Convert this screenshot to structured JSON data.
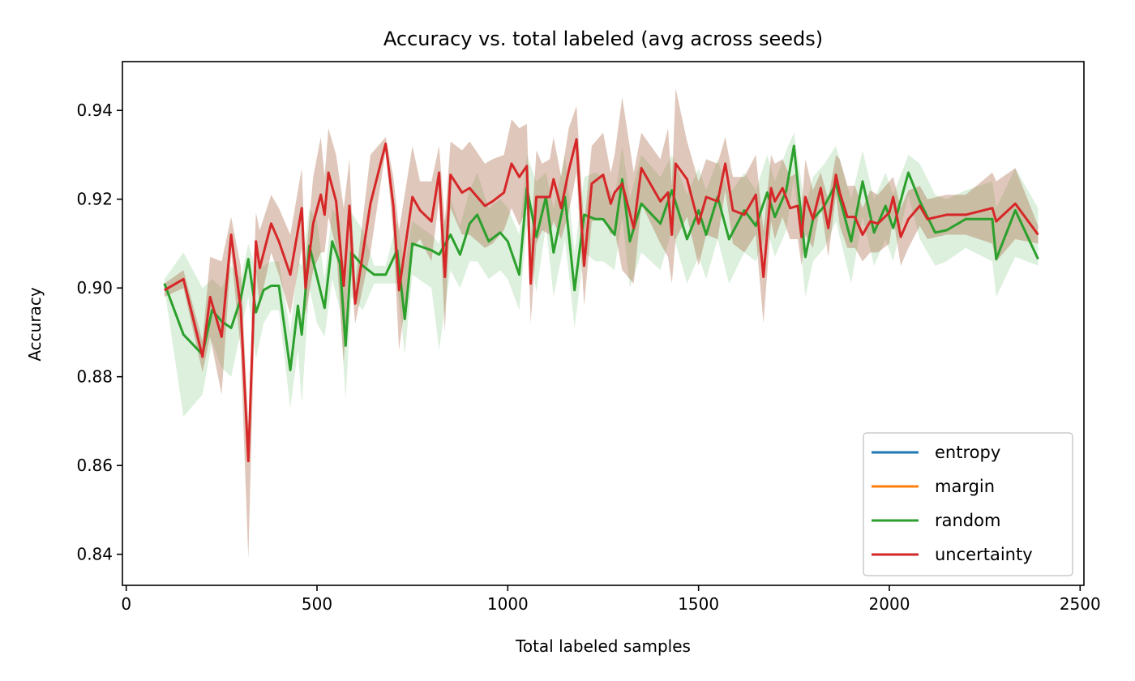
{
  "chart_data": {
    "type": "line",
    "title": "Accuracy vs. total labeled (avg across seeds)",
    "xlabel": "Total labeled samples",
    "ylabel": "Accuracy",
    "xlim": [
      -10,
      2510
    ],
    "ylim": [
      0.833,
      0.951
    ],
    "xticks": [
      0,
      500,
      1000,
      1500,
      2000,
      2500
    ],
    "yticks": [
      0.84,
      0.86,
      0.88,
      0.9,
      0.92,
      0.94
    ],
    "grid": false,
    "legend_position": "lower-right",
    "legend": [
      {
        "label": "entropy",
        "color": "#1f77b4"
      },
      {
        "label": "margin",
        "color": "#ff7f0e"
      },
      {
        "label": "random",
        "color": "#2ca02c"
      },
      {
        "label": "uncertainty",
        "color": "#d62728"
      }
    ],
    "series": [
      {
        "name": "random",
        "color": "#2ca02c",
        "band_color": "#2ca02c",
        "band_opacity": 0.16,
        "x": [
          100,
          150,
          200,
          225,
          250,
          275,
          300,
          320,
          340,
          360,
          380,
          400,
          430,
          450,
          460,
          480,
          500,
          520,
          540,
          560,
          575,
          590,
          620,
          650,
          680,
          710,
          730,
          750,
          800,
          820,
          850,
          875,
          900,
          920,
          950,
          980,
          1000,
          1030,
          1050,
          1075,
          1100,
          1120,
          1150,
          1175,
          1200,
          1230,
          1250,
          1280,
          1300,
          1320,
          1350,
          1400,
          1430,
          1470,
          1500,
          1520,
          1550,
          1580,
          1620,
          1650,
          1680,
          1700,
          1730,
          1750,
          1780,
          1800,
          1830,
          1860,
          1900,
          1930,
          1960,
          1990,
          2010,
          2050,
          2080,
          2120,
          2150,
          2200,
          2270,
          2280,
          2330,
          2390
        ],
        "y": [
          0.901,
          0.8895,
          0.885,
          0.895,
          0.8925,
          0.891,
          0.8975,
          0.9065,
          0.8945,
          0.8995,
          0.9005,
          0.9005,
          0.8815,
          0.896,
          0.8895,
          0.9095,
          0.9025,
          0.8955,
          0.9105,
          0.9055,
          0.887,
          0.908,
          0.905,
          0.903,
          0.903,
          0.9085,
          0.893,
          0.91,
          0.9085,
          0.9075,
          0.912,
          0.9075,
          0.9145,
          0.9165,
          0.9105,
          0.9125,
          0.9105,
          0.903,
          0.9225,
          0.9115,
          0.9205,
          0.908,
          0.9205,
          0.8995,
          0.9165,
          0.9155,
          0.9155,
          0.912,
          0.9245,
          0.9105,
          0.919,
          0.9145,
          0.922,
          0.911,
          0.9175,
          0.912,
          0.9205,
          0.911,
          0.9175,
          0.914,
          0.9215,
          0.916,
          0.922,
          0.932,
          0.907,
          0.9155,
          0.9185,
          0.9235,
          0.9105,
          0.924,
          0.9125,
          0.9185,
          0.9135,
          0.926,
          0.9195,
          0.9125,
          0.913,
          0.9155,
          0.9155,
          0.9065,
          0.9175,
          0.9065
        ],
        "band_upper": [
          0.902,
          0.908,
          0.9,
          0.902,
          0.9,
          0.905,
          0.902,
          0.91,
          0.904,
          0.905,
          0.906,
          0.906,
          0.89,
          0.906,
          0.905,
          0.918,
          0.915,
          0.902,
          0.918,
          0.915,
          0.9,
          0.917,
          0.913,
          0.905,
          0.905,
          0.915,
          0.905,
          0.915,
          0.912,
          0.91,
          0.92,
          0.914,
          0.922,
          0.926,
          0.918,
          0.92,
          0.918,
          0.912,
          0.93,
          0.924,
          0.926,
          0.918,
          0.93,
          0.908,
          0.925,
          0.926,
          0.925,
          0.92,
          0.932,
          0.92,
          0.93,
          0.925,
          0.93,
          0.921,
          0.927,
          0.922,
          0.929,
          0.921,
          0.926,
          0.922,
          0.93,
          0.924,
          0.931,
          0.935,
          0.918,
          0.925,
          0.928,
          0.932,
          0.92,
          0.931,
          0.92,
          0.926,
          0.921,
          0.93,
          0.928,
          0.921,
          0.92,
          0.922,
          0.924,
          0.918,
          0.927,
          0.918
        ],
        "band_lower": [
          0.9,
          0.871,
          0.876,
          0.888,
          0.882,
          0.88,
          0.89,
          0.898,
          0.884,
          0.892,
          0.895,
          0.895,
          0.873,
          0.886,
          0.874,
          0.9,
          0.892,
          0.889,
          0.902,
          0.895,
          0.875,
          0.898,
          0.895,
          0.901,
          0.901,
          0.901,
          0.885,
          0.903,
          0.9,
          0.886,
          0.904,
          0.9,
          0.906,
          0.906,
          0.902,
          0.904,
          0.902,
          0.895,
          0.914,
          0.899,
          0.914,
          0.898,
          0.911,
          0.891,
          0.908,
          0.906,
          0.906,
          0.904,
          0.916,
          0.9,
          0.908,
          0.904,
          0.913,
          0.901,
          0.907,
          0.902,
          0.911,
          0.901,
          0.908,
          0.906,
          0.913,
          0.907,
          0.913,
          0.925,
          0.898,
          0.906,
          0.909,
          0.915,
          0.901,
          0.916,
          0.905,
          0.911,
          0.906,
          0.921,
          0.911,
          0.905,
          0.906,
          0.909,
          0.906,
          0.898,
          0.907,
          0.905
        ]
      },
      {
        "name": "uncertainty",
        "color": "#d62728",
        "band_color": "#a0522d",
        "band_opacity": 0.32,
        "x": [
          100,
          150,
          200,
          220,
          250,
          275,
          300,
          320,
          340,
          350,
          380,
          400,
          430,
          460,
          470,
          490,
          510,
          520,
          530,
          550,
          570,
          585,
          600,
          640,
          680,
          700,
          715,
          750,
          770,
          800,
          820,
          835,
          850,
          880,
          900,
          940,
          960,
          990,
          1010,
          1030,
          1050,
          1060,
          1075,
          1090,
          1110,
          1120,
          1140,
          1160,
          1180,
          1200,
          1220,
          1250,
          1270,
          1280,
          1300,
          1330,
          1350,
          1400,
          1420,
          1430,
          1440,
          1470,
          1500,
          1520,
          1550,
          1570,
          1590,
          1620,
          1650,
          1670,
          1690,
          1700,
          1720,
          1740,
          1760,
          1770,
          1780,
          1800,
          1820,
          1840,
          1860,
          1870,
          1890,
          1910,
          1930,
          1950,
          1970,
          2000,
          2010,
          2030,
          2050,
          2080,
          2100,
          2150,
          2200,
          2270,
          2280,
          2330,
          2390
        ],
        "y": [
          0.8995,
          0.902,
          0.8845,
          0.898,
          0.889,
          0.912,
          0.8955,
          0.861,
          0.9105,
          0.9045,
          0.9145,
          0.9105,
          0.903,
          0.918,
          0.9,
          0.9145,
          0.921,
          0.9165,
          0.926,
          0.9195,
          0.9005,
          0.9185,
          0.8965,
          0.919,
          0.9325,
          0.9185,
          0.8995,
          0.9205,
          0.9175,
          0.915,
          0.926,
          0.9025,
          0.9255,
          0.9215,
          0.9225,
          0.9185,
          0.9195,
          0.9215,
          0.928,
          0.925,
          0.9275,
          0.901,
          0.9205,
          0.9205,
          0.9205,
          0.9245,
          0.918,
          0.9265,
          0.9335,
          0.905,
          0.9235,
          0.9255,
          0.919,
          0.9215,
          0.9235,
          0.9135,
          0.927,
          0.9195,
          0.9215,
          0.912,
          0.928,
          0.9245,
          0.9145,
          0.9205,
          0.9195,
          0.928,
          0.9175,
          0.9165,
          0.921,
          0.9025,
          0.9225,
          0.9195,
          0.9225,
          0.918,
          0.9185,
          0.9115,
          0.9205,
          0.9155,
          0.9225,
          0.9135,
          0.9255,
          0.9215,
          0.916,
          0.916,
          0.912,
          0.915,
          0.9145,
          0.917,
          0.9205,
          0.9115,
          0.9155,
          0.9185,
          0.9155,
          0.9165,
          0.9165,
          0.918,
          0.915,
          0.919,
          0.912
        ],
        "band_upper": [
          0.901,
          0.904,
          0.888,
          0.907,
          0.906,
          0.916,
          0.905,
          0.869,
          0.917,
          0.913,
          0.921,
          0.918,
          0.912,
          0.927,
          0.906,
          0.925,
          0.934,
          0.925,
          0.936,
          0.93,
          0.918,
          0.929,
          0.901,
          0.93,
          0.934,
          0.925,
          0.913,
          0.932,
          0.924,
          0.924,
          0.932,
          0.915,
          0.933,
          0.931,
          0.933,
          0.928,
          0.929,
          0.93,
          0.938,
          0.936,
          0.937,
          0.91,
          0.931,
          0.928,
          0.929,
          0.934,
          0.925,
          0.936,
          0.941,
          0.914,
          0.932,
          0.935,
          0.926,
          0.93,
          0.943,
          0.926,
          0.935,
          0.929,
          0.936,
          0.923,
          0.945,
          0.933,
          0.924,
          0.929,
          0.928,
          0.934,
          0.925,
          0.925,
          0.93,
          0.913,
          0.93,
          0.928,
          0.929,
          0.925,
          0.926,
          0.918,
          0.929,
          0.922,
          0.926,
          0.92,
          0.93,
          0.929,
          0.923,
          0.923,
          0.918,
          0.922,
          0.921,
          0.924,
          0.925,
          0.918,
          0.922,
          0.923,
          0.92,
          0.921,
          0.921,
          0.926,
          0.924,
          0.927,
          0.914
        ],
        "band_lower": [
          0.898,
          0.9,
          0.881,
          0.889,
          0.876,
          0.908,
          0.886,
          0.839,
          0.904,
          0.896,
          0.908,
          0.903,
          0.894,
          0.909,
          0.894,
          0.904,
          0.908,
          0.908,
          0.916,
          0.909,
          0.883,
          0.908,
          0.892,
          0.908,
          0.931,
          0.912,
          0.886,
          0.909,
          0.911,
          0.906,
          0.92,
          0.89,
          0.918,
          0.912,
          0.912,
          0.909,
          0.91,
          0.913,
          0.918,
          0.914,
          0.918,
          0.892,
          0.91,
          0.913,
          0.912,
          0.915,
          0.911,
          0.917,
          0.926,
          0.896,
          0.915,
          0.916,
          0.912,
          0.913,
          0.904,
          0.901,
          0.919,
          0.91,
          0.907,
          0.901,
          0.911,
          0.916,
          0.905,
          0.912,
          0.911,
          0.922,
          0.91,
          0.908,
          0.912,
          0.892,
          0.915,
          0.911,
          0.916,
          0.911,
          0.911,
          0.905,
          0.912,
          0.909,
          0.919,
          0.907,
          0.921,
          0.914,
          0.909,
          0.909,
          0.906,
          0.908,
          0.908,
          0.91,
          0.916,
          0.905,
          0.909,
          0.914,
          0.911,
          0.912,
          0.912,
          0.91,
          0.906,
          0.911,
          0.91
        ]
      }
    ]
  }
}
